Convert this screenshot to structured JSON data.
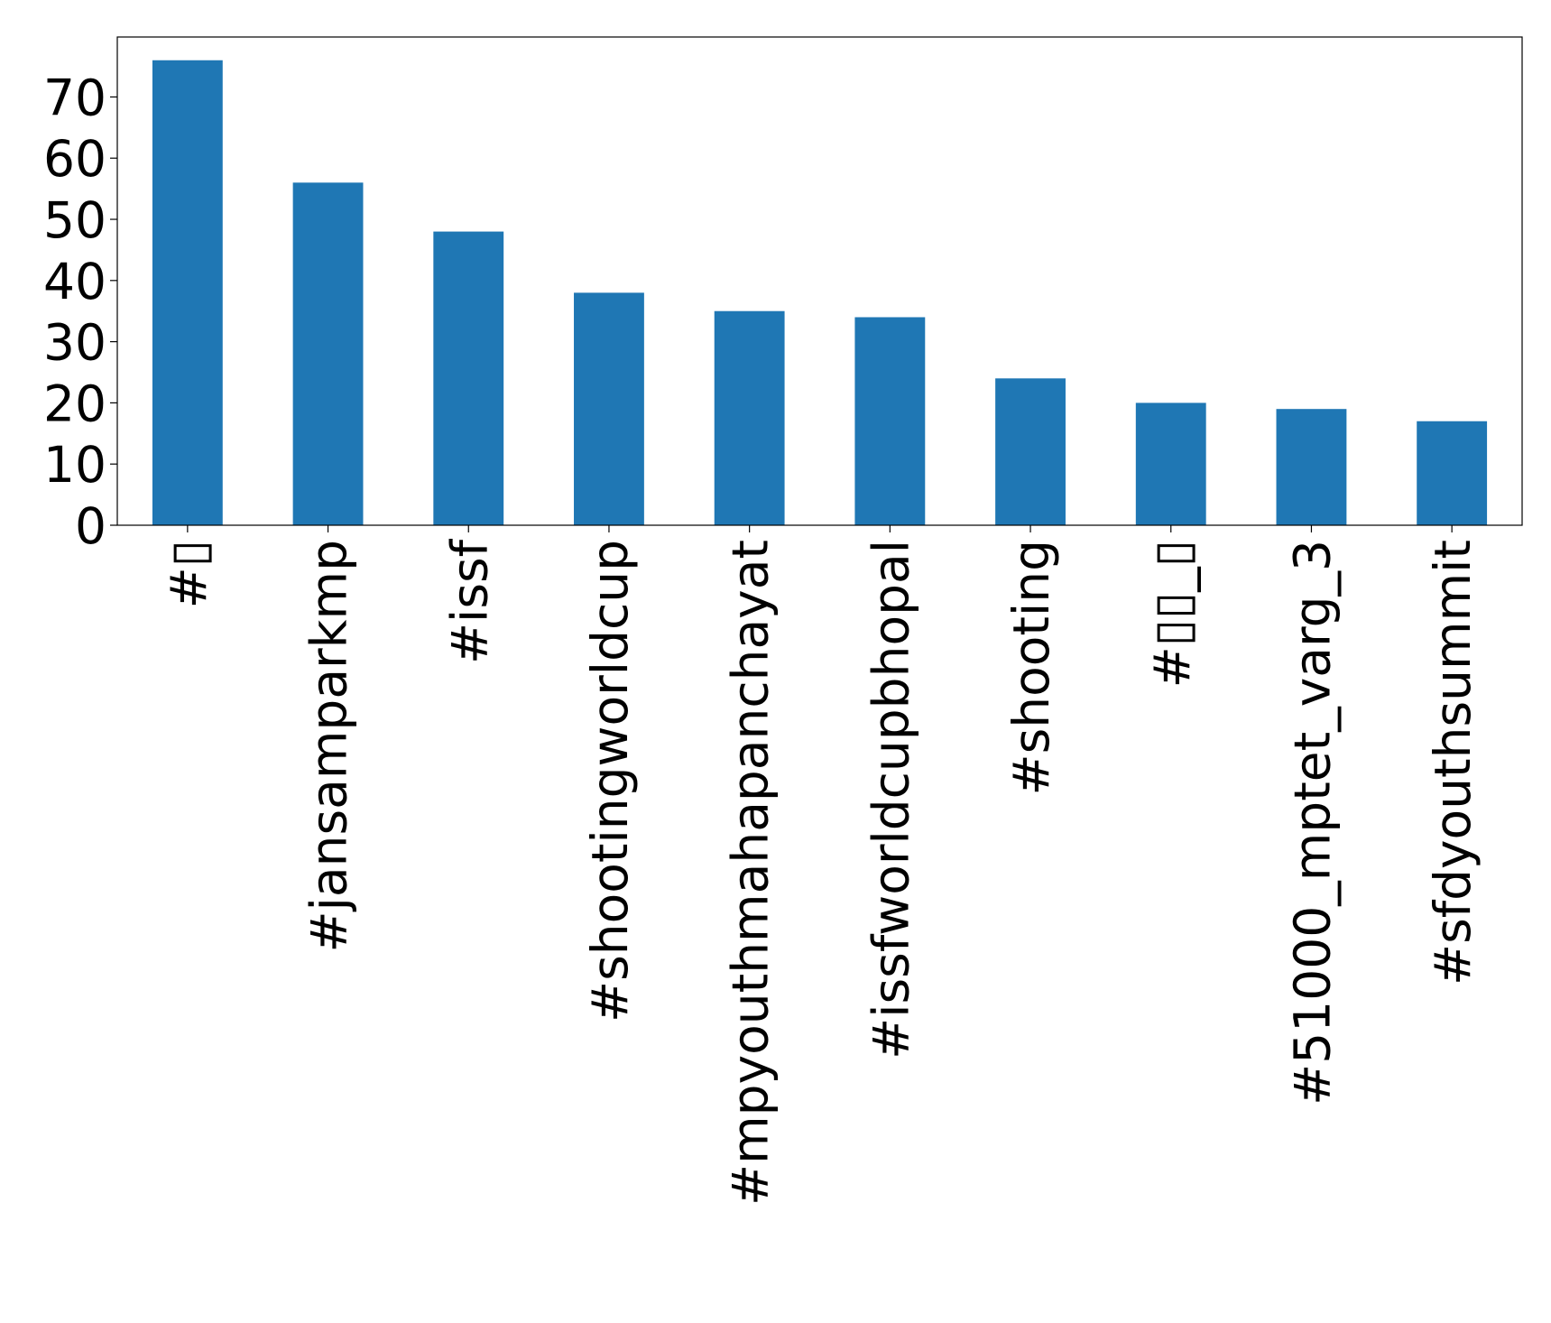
{
  "chart_data": {
    "type": "bar",
    "categories": [
      "#▯",
      "#jansamparkmp",
      "#issf",
      "#shootingworldcup",
      "#mpyouthmahapanchayat",
      "#issfworldcupbhopal",
      "#shooting",
      "#▯▯_▯",
      "#51000_mptet_varg_3",
      "#sfdyouthsummit"
    ],
    "values": [
      76,
      56,
      48,
      38,
      35,
      34,
      24,
      20,
      19,
      17
    ],
    "color": "#1f77b4",
    "ylim": [
      0,
      79.8
    ],
    "yticks": [
      0,
      10,
      20,
      30,
      40,
      50,
      60,
      70
    ],
    "grid": false
  }
}
